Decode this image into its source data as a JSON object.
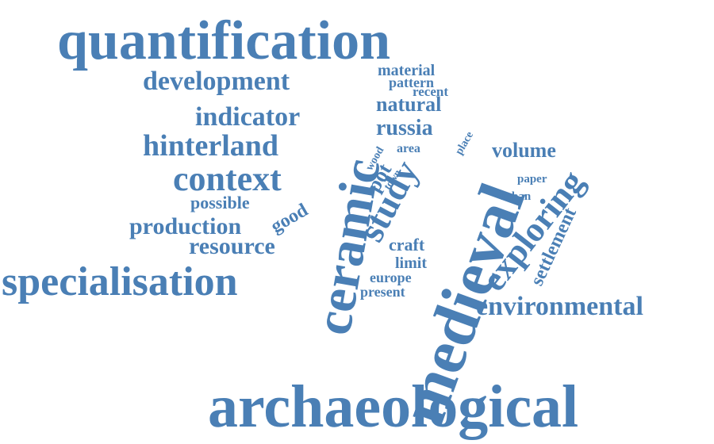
{
  "cloud": {
    "color": "#4a7fb5",
    "words": {
      "quantification": "quantification",
      "medieval": "medieval",
      "ceramic": "ceramic",
      "archaeological": "archaeological",
      "specialisation": "specialisation",
      "study": "study",
      "exploring": "exploring",
      "context": "context",
      "hinterland": "hinterland",
      "development": "development",
      "indicator": "indicator",
      "environmental": "environmental",
      "resource": "resource",
      "production": "production",
      "possible": "possible",
      "good": "good",
      "pot": "pot",
      "wood": "wood",
      "town": "town",
      "area": "area",
      "place": "place",
      "russia": "russia",
      "natural": "natural",
      "recent": "recent",
      "pattern": "pattern",
      "material": "material",
      "volume": "volume",
      "paper": "paper",
      "urban": "urban",
      "settlement": "settlement",
      "craft": "craft",
      "limit": "limit",
      "europe": "europe",
      "present": "present"
    }
  }
}
